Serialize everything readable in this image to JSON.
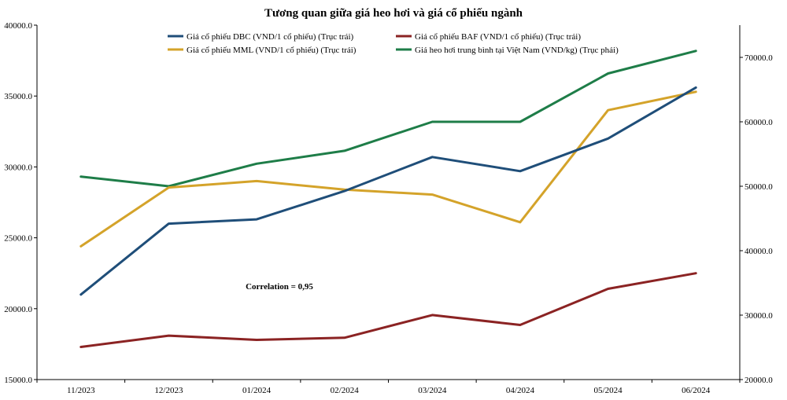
{
  "chart_data": {
    "type": "line",
    "title": "Tương quan giữa giá heo hơi và giá cổ phiếu ngành",
    "categories": [
      "11/2023",
      "12/2023",
      "01/2024",
      "02/2024",
      "03/2024",
      "04/2024",
      "05/2024",
      "06/2024"
    ],
    "left_axis": {
      "ylim": [
        15000,
        40000
      ],
      "ticks": [
        "15000.0",
        "20000.0",
        "25000.0",
        "30000.0",
        "35000.0",
        "40000.0"
      ],
      "tick_values": [
        15000,
        20000,
        25000,
        30000,
        35000,
        40000
      ]
    },
    "right_axis": {
      "ylim": [
        20000,
        75000
      ],
      "ticks": [
        "20000.0",
        "30000.0",
        "40000.0",
        "50000.0",
        "60000.0",
        "70000.0"
      ],
      "tick_values": [
        20000,
        30000,
        40000,
        50000,
        60000,
        70000
      ]
    },
    "series": [
      {
        "name": "Giá cổ phiếu DBC (VND/1 cổ phiếu) (Trục trái)",
        "axis": "left",
        "color": "#1f4e79",
        "values": [
          21000,
          26000,
          26300,
          28300,
          30700,
          29700,
          32000,
          35600
        ]
      },
      {
        "name": "Giá cổ phiếu BAF (VND/1 cổ phiếu) (Trục trái)",
        "axis": "left",
        "color": "#8b2323",
        "values": [
          17300,
          18100,
          17800,
          17950,
          19550,
          18850,
          21400,
          22500
        ]
      },
      {
        "name": "Giá cổ phiếu MML (VND/1 cổ phiếu) (Trục trái)",
        "axis": "left",
        "color": "#d4a32a",
        "values": [
          24400,
          28550,
          29000,
          28400,
          28050,
          26100,
          34000,
          35300
        ]
      },
      {
        "name": "Giá heo hơi trung bình tại Việt Nam (VND/kg) (Trục phải)",
        "axis": "right",
        "color": "#1e7d48",
        "values": [
          51500,
          50000,
          53500,
          55500,
          60000,
          60000,
          67500,
          71000
        ]
      }
    ],
    "annotation": "Correlation = 0,95",
    "legend_position": "top"
  }
}
